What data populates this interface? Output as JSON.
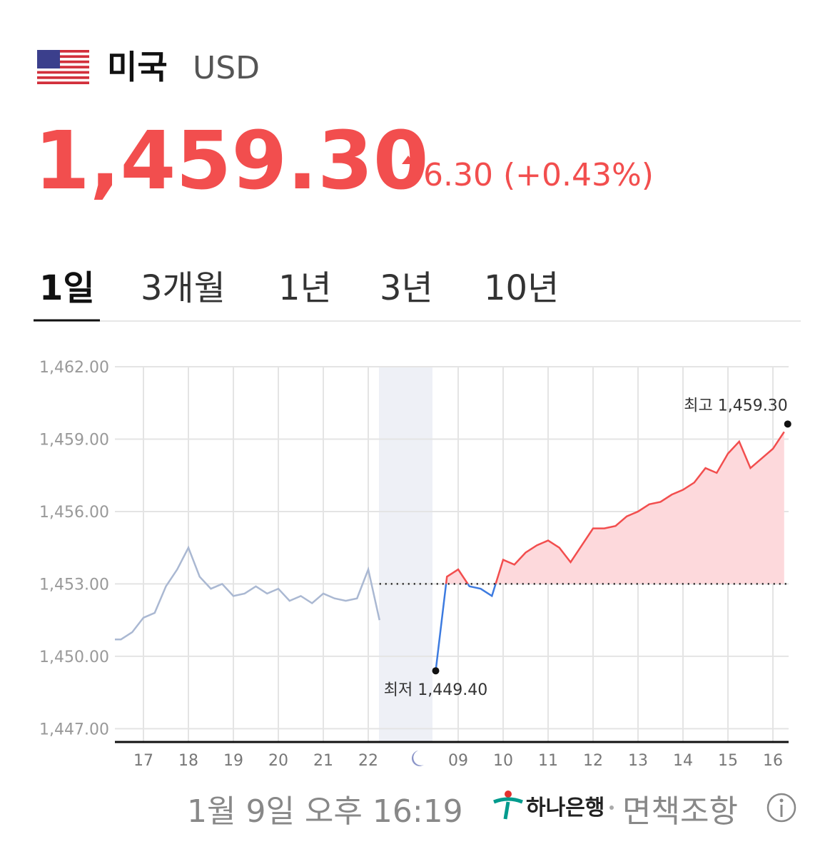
{
  "header": {
    "country": "미국",
    "currency": "USD",
    "price": "1,459.30",
    "change": "6.30 (+0.43%)"
  },
  "tabs": [
    "1일",
    "3개월",
    "1년",
    "3년",
    "10년"
  ],
  "footer": {
    "timestamp": "1월 9일 오후 16:19",
    "bank": "하나은행",
    "disclaimer": "면책조항"
  },
  "chart_data": {
    "type": "line",
    "categories": [
      null,
      null,
      null,
      "17",
      null,
      null,
      null,
      "18",
      null,
      null,
      null,
      "19",
      null,
      null,
      null,
      "20",
      null,
      null,
      null,
      "21",
      null,
      null,
      null,
      "22",
      null,
      null,
      null,
      null,
      null,
      null,
      null,
      "09",
      null,
      null,
      null,
      "10",
      null,
      null,
      null,
      "11",
      null,
      null,
      null,
      "12",
      null,
      null,
      null,
      "13",
      null,
      null,
      null,
      "14",
      null,
      null,
      null,
      "15",
      null,
      null,
      null,
      "16",
      null
    ],
    "series": [
      {
        "color": "#aab8d2",
        "values": [
          1450.7,
          1450.7,
          1451.0,
          1451.6,
          1451.8,
          1452.9,
          1453.6,
          1454.5,
          1453.3,
          1452.8,
          1453.0,
          1452.5,
          1452.6,
          1452.9,
          1452.6,
          1452.8,
          1452.3,
          1452.5,
          1452.2,
          1452.6,
          1452.4,
          1452.3,
          1452.4,
          1453.6,
          1451.5,
          null,
          null,
          null,
          null,
          null,
          null,
          null,
          null,
          null,
          null,
          null,
          null,
          null,
          null,
          null,
          null,
          null,
          null,
          null,
          null,
          null,
          null,
          null,
          null,
          null,
          null,
          null,
          null,
          null,
          null,
          null,
          null,
          null,
          null,
          null,
          null
        ]
      },
      {
        "color": "#f24e4e",
        "below_color": "#3d7be0",
        "fill": "#fdd9dc",
        "values": [
          null,
          null,
          null,
          null,
          null,
          null,
          null,
          null,
          null,
          null,
          null,
          null,
          null,
          null,
          null,
          null,
          null,
          null,
          null,
          null,
          null,
          null,
          null,
          null,
          null,
          null,
          null,
          null,
          null,
          1449.4,
          1453.3,
          1453.6,
          1452.9,
          1452.8,
          1452.5,
          1454.0,
          1453.8,
          1454.3,
          1454.6,
          1454.8,
          1454.5,
          1453.9,
          1454.6,
          1455.3,
          1455.3,
          1455.4,
          1455.8,
          1456.0,
          1456.3,
          1456.4,
          1456.7,
          1456.9,
          1457.2,
          1457.8,
          1457.6,
          1458.4,
          1458.9,
          1457.8,
          1458.2,
          1458.6,
          1459.3
        ]
      }
    ],
    "baseline": 1453.0,
    "low_label": "최저 1,449.40",
    "high_label": "최고 1,459.30",
    "ylim": [
      1446.45,
      1462.0
    ],
    "yticks": [
      {
        "value": 1462,
        "label": "1,462.00"
      },
      {
        "value": 1459,
        "label": "1,459.00"
      },
      {
        "value": 1456,
        "label": "1,456.00"
      },
      {
        "value": 1453,
        "label": "1,453.00"
      },
      {
        "value": 1450,
        "label": "1,450.00"
      },
      {
        "value": 1447,
        "label": "1,447.00"
      }
    ],
    "grid": true
  }
}
